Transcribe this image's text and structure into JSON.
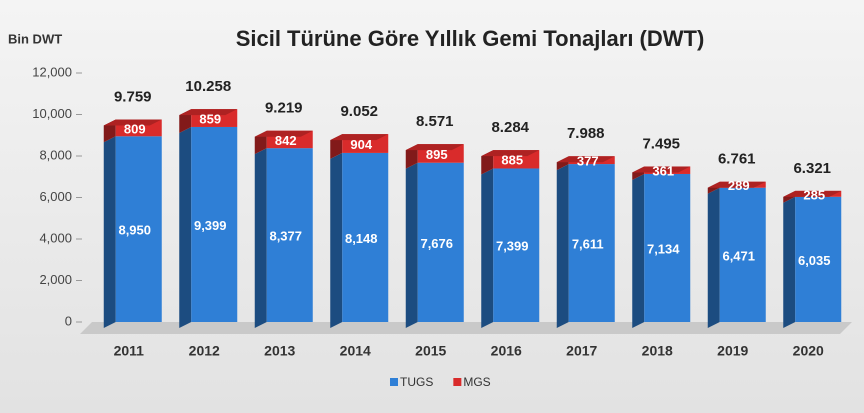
{
  "chart_data": {
    "type": "bar",
    "stacked": true,
    "title": "Sicil Türüne Göre Yıllık Gemi Tonajları (DWT)",
    "y_label": "Bin DWT",
    "categories": [
      "2011",
      "2012",
      "2013",
      "2014",
      "2015",
      "2016",
      "2017",
      "2018",
      "2019",
      "2020"
    ],
    "series": [
      {
        "name": "TUGS",
        "color": "#2f7fd6",
        "values": [
          8950,
          9399,
          8377,
          8148,
          7676,
          7399,
          7611,
          7134,
          6471,
          6035
        ],
        "value_labels": [
          "8,950",
          "9,399",
          "8,377",
          "8,148",
          "7,676",
          "7,399",
          "7,611",
          "7,134",
          "6,471",
          "6,035"
        ]
      },
      {
        "name": "MGS",
        "color": "#d92b2b",
        "values": [
          809,
          859,
          842,
          904,
          895,
          885,
          377,
          361,
          289,
          285
        ]
      }
    ],
    "totals": {
      "values": [
        9759,
        10258,
        9219,
        9052,
        8571,
        8284,
        7988,
        7495,
        6761,
        6321
      ],
      "value_labels": [
        "9.759",
        "10.258",
        "9.219",
        "9.052",
        "8.571",
        "8.284",
        "7.988",
        "7.495",
        "6.761",
        "6.321"
      ]
    },
    "ylim": [
      0,
      12000
    ],
    "yticks": [
      0,
      {
        "value": 2000,
        "label": "2,000"
      },
      {
        "value": 4000,
        "label": "4,000"
      },
      {
        "value": 6000,
        "label": "6,000"
      },
      {
        "value": 8000,
        "label": "8,000"
      },
      {
        "value": 10000,
        "label": "10,000"
      },
      {
        "value": 12000,
        "label": "12,000"
      }
    ],
    "legend": "bottom"
  }
}
